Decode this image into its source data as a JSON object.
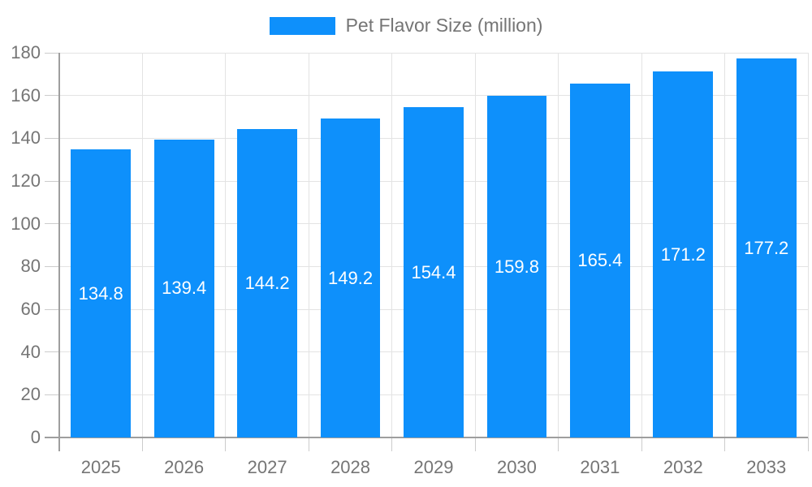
{
  "legend": {
    "label": "Pet Flavor Size (million)"
  },
  "chart_data": {
    "type": "bar",
    "title": "",
    "series_name": "Pet Flavor Size (million)",
    "categories": [
      "2025",
      "2026",
      "2027",
      "2028",
      "2029",
      "2030",
      "2031",
      "2032",
      "2033"
    ],
    "values": [
      134.8,
      139.4,
      144.2,
      149.2,
      154.4,
      159.8,
      165.4,
      171.2,
      177.2
    ],
    "bar_value_labels": [
      "134.8",
      "139.4",
      "144.2",
      "149.2",
      "154.4",
      "159.8",
      "165.4",
      "171.2",
      "177.2"
    ],
    "xlabel": "",
    "ylabel": "",
    "ylim": [
      0,
      180
    ],
    "ytick_step": 20,
    "ytick_labels": [
      "0",
      "20",
      "40",
      "60",
      "80",
      "100",
      "120",
      "140",
      "160",
      "180"
    ],
    "grid": true,
    "legend_position": "top",
    "colors": {
      "bar": "#0e90fb",
      "bar_label": "#ffffff",
      "axis_text": "#757575",
      "axis_line": "#9e9e9e",
      "gridline": "#e3e3e3",
      "tick": "#cccccc",
      "background": "#ffffff"
    }
  }
}
